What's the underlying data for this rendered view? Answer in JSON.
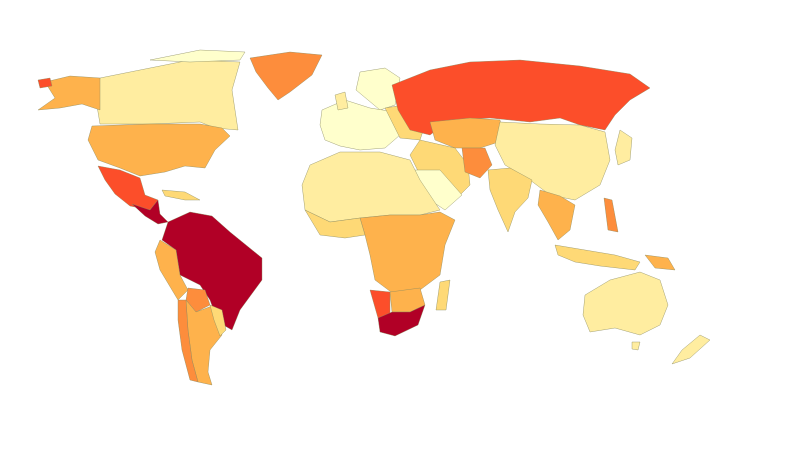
{
  "map": {
    "type": "choropleth",
    "palette": [
      "#ffffcc",
      "#ffeda0",
      "#fed976",
      "#feb24c",
      "#fd8d3c",
      "#fc4e2a",
      "#b10026"
    ]
  }
}
